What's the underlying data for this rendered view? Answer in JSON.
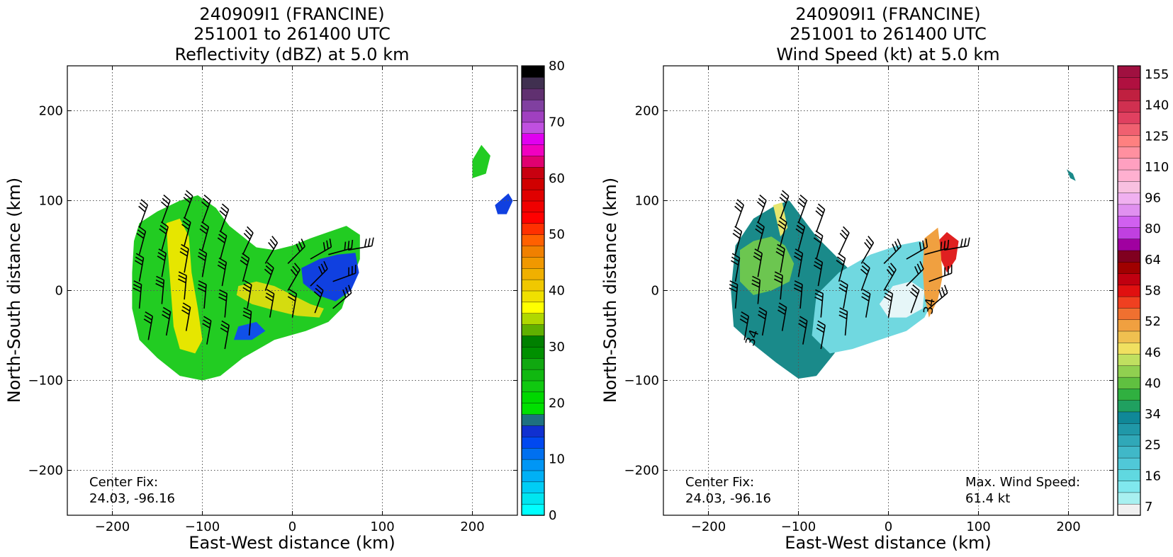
{
  "chart_data": [
    {
      "type": "heatmap",
      "title_lines": [
        "240909I1 (FRANCINE)",
        "251001 to 261400 UTC",
        "Reflectivity (dBZ) at 5.0 km"
      ],
      "xlabel": "East-West distance (km)",
      "ylabel": "North-South distance (km)",
      "xlim": [
        -250,
        250
      ],
      "ylim": [
        -250,
        250
      ],
      "xticks": [
        -200,
        -100,
        0,
        100,
        200
      ],
      "yticks": [
        -200,
        -100,
        0,
        100,
        200
      ],
      "grid": true,
      "annotation": [
        "Center Fix:",
        "24.03, -96.16"
      ],
      "colorbar": {
        "min": 0,
        "max": 80,
        "ticks": [
          0,
          10,
          20,
          30,
          40,
          50,
          60,
          70,
          80
        ],
        "colors": [
          "#00ffff",
          "#00e5f0",
          "#00cdf5",
          "#00b0f5",
          "#0096f5",
          "#0070f0",
          "#0048f0",
          "#1030d0",
          "#1e7080",
          "#00e000",
          "#00d800",
          "#10c810",
          "#10b810",
          "#10a810",
          "#009000",
          "#008000",
          "#60b000",
          "#b0d800",
          "#ffff00",
          "#f0e000",
          "#f0c800",
          "#f0b000",
          "#f09800",
          "#f08000",
          "#ff6000",
          "#ff3000",
          "#ff0000",
          "#f00000",
          "#e00000",
          "#d00000",
          "#c80010",
          "#e00070",
          "#f000c0",
          "#e000f0",
          "#c050e0",
          "#a040c0",
          "#8040a0",
          "#603070",
          "#403050",
          "#000000"
        ]
      },
      "echo_regions": [
        {
          "level": "green",
          "color": "#22cc22",
          "points": [
            [
              -170,
              75
            ],
            [
              -150,
              88
            ],
            [
              -125,
              100
            ],
            [
              -105,
              106
            ],
            [
              -85,
              92
            ],
            [
              -70,
              72
            ],
            [
              -55,
              60
            ],
            [
              -40,
              48
            ],
            [
              -20,
              45
            ],
            [
              0,
              50
            ],
            [
              20,
              58
            ],
            [
              40,
              65
            ],
            [
              60,
              72
            ],
            [
              75,
              62
            ],
            [
              75,
              35
            ],
            [
              65,
              10
            ],
            [
              55,
              -20
            ],
            [
              40,
              -35
            ],
            [
              15,
              -45
            ],
            [
              -20,
              -55
            ],
            [
              -55,
              -75
            ],
            [
              -80,
              -95
            ],
            [
              -100,
              -100
            ],
            [
              -125,
              -95
            ],
            [
              -150,
              -75
            ],
            [
              -170,
              -55
            ],
            [
              -178,
              -20
            ],
            [
              -178,
              20
            ],
            [
              -176,
              55
            ]
          ]
        },
        {
          "level": "yellow-band",
          "color": "#e6e600",
          "points": [
            [
              -140,
              75
            ],
            [
              -125,
              80
            ],
            [
              -115,
              60
            ],
            [
              -112,
              20
            ],
            [
              -105,
              -20
            ],
            [
              -100,
              -55
            ],
            [
              -108,
              -70
            ],
            [
              -125,
              -65
            ],
            [
              -132,
              -40
            ],
            [
              -135,
              0
            ],
            [
              -138,
              40
            ]
          ]
        },
        {
          "level": "yellow-east",
          "color": "#d4dc10",
          "points": [
            [
              -60,
              5
            ],
            [
              -40,
              10
            ],
            [
              -20,
              5
            ],
            [
              0,
              -5
            ],
            [
              20,
              -15
            ],
            [
              35,
              -20
            ],
            [
              30,
              -30
            ],
            [
              5,
              -28
            ],
            [
              -20,
              -22
            ],
            [
              -45,
              -15
            ],
            [
              -62,
              -5
            ]
          ]
        },
        {
          "level": "blue",
          "color": "#1040e0",
          "points": [
            [
              10,
              25
            ],
            [
              30,
              35
            ],
            [
              50,
              40
            ],
            [
              70,
              42
            ],
            [
              74,
              20
            ],
            [
              65,
              0
            ],
            [
              48,
              -12
            ],
            [
              28,
              -5
            ],
            [
              12,
              8
            ]
          ]
        },
        {
          "level": "blue-west",
          "color": "#1050e8",
          "points": [
            [
              -60,
              -40
            ],
            [
              -40,
              -35
            ],
            [
              -30,
              -45
            ],
            [
              -45,
              -55
            ],
            [
              -65,
              -55
            ]
          ]
        },
        {
          "level": "green-far",
          "color": "#22cc22",
          "points": [
            [
              200,
              125
            ],
            [
              215,
              130
            ],
            [
              220,
              150
            ],
            [
              210,
              162
            ],
            [
              200,
              145
            ]
          ]
        },
        {
          "level": "blue-far",
          "color": "#1040e0",
          "points": [
            [
              225,
              95
            ],
            [
              240,
              108
            ],
            [
              245,
              100
            ],
            [
              238,
              85
            ],
            [
              228,
              85
            ]
          ]
        }
      ],
      "wind_barbs_present": true
    },
    {
      "type": "heatmap",
      "title_lines": [
        "240909I1 (FRANCINE)",
        "251001 to 261400 UTC",
        "Wind Speed (kt) at 5.0 km"
      ],
      "xlabel": "East-West distance (km)",
      "ylabel": "North-South distance (km)",
      "xlim": [
        -250,
        250
      ],
      "ylim": [
        -250,
        250
      ],
      "xticks": [
        -200,
        -100,
        0,
        100,
        200
      ],
      "yticks": [
        -200,
        -100,
        0,
        100,
        200
      ],
      "grid": true,
      "annotation": [
        "Center Fix:",
        "24.03, -96.16"
      ],
      "max_wind_annotation": [
        "Max. Wind Speed:",
        "61.4 kt"
      ],
      "max_wind_kt": 61.4,
      "contour_labels": [
        "34",
        "34"
      ],
      "colorbar": {
        "ticks": [
          7,
          16,
          25,
          34,
          40,
          46,
          52,
          58,
          64,
          80,
          96,
          110,
          125,
          140,
          155
        ],
        "colors": [
          "#f0f0f0",
          "#a8f0f0",
          "#80e8ee",
          "#60d8e0",
          "#50c8d8",
          "#40b8c8",
          "#30a8b8",
          "#2098a8",
          "#108898",
          "#20a060",
          "#30b040",
          "#60c040",
          "#90d050",
          "#c0e060",
          "#f0e060",
          "#f0c050",
          "#f0a040",
          "#f07030",
          "#f04020",
          "#e01010",
          "#c00010",
          "#a00000",
          "#800020",
          "#a000a0",
          "#c040e0",
          "#d060f0",
          "#e090f0",
          "#f0b0f0",
          "#f8c0e0",
          "#ffb0d0",
          "#ffa0c0",
          "#ff90a0",
          "#ff8080",
          "#f06070",
          "#e04060",
          "#d03050",
          "#c02040",
          "#b01040",
          "#a01040"
        ]
      },
      "wind_regions": [
        {
          "level": "teal-west",
          "color": "#1a8a8a",
          "points": [
            [
              -170,
              50
            ],
            [
              -150,
              80
            ],
            [
              -125,
              95
            ],
            [
              -110,
              100
            ],
            [
              -95,
              80
            ],
            [
              -80,
              60
            ],
            [
              -60,
              40
            ],
            [
              -45,
              25
            ],
            [
              -40,
              -5
            ],
            [
              -45,
              -40
            ],
            [
              -60,
              -70
            ],
            [
              -80,
              -95
            ],
            [
              -100,
              -98
            ],
            [
              -125,
              -80
            ],
            [
              -150,
              -60
            ],
            [
              -172,
              -40
            ],
            [
              -175,
              0
            ]
          ]
        },
        {
          "level": "green-west",
          "color": "#6cc650",
          "points": [
            [
              -165,
              45
            ],
            [
              -150,
              55
            ],
            [
              -130,
              60
            ],
            [
              -115,
              50
            ],
            [
              -105,
              30
            ],
            [
              -110,
              10
            ],
            [
              -130,
              0
            ],
            [
              -150,
              -5
            ],
            [
              -165,
              10
            ]
          ]
        },
        {
          "level": "yellow-strip",
          "color": "#e6e66e",
          "points": [
            [
              -128,
              95
            ],
            [
              -118,
              98
            ],
            [
              -112,
              70
            ],
            [
              -120,
              60
            ]
          ]
        },
        {
          "level": "cyan-east",
          "color": "#70d8e0",
          "points": [
            [
              -80,
              -5
            ],
            [
              -55,
              20
            ],
            [
              -20,
              40
            ],
            [
              10,
              50
            ],
            [
              35,
              55
            ],
            [
              50,
              45
            ],
            [
              55,
              20
            ],
            [
              50,
              -10
            ],
            [
              40,
              -30
            ],
            [
              20,
              -45
            ],
            [
              -10,
              -55
            ],
            [
              -40,
              -65
            ],
            [
              -65,
              -70
            ],
            [
              -85,
              -50
            ]
          ]
        },
        {
          "level": "white-core",
          "color": "#e6f6f8",
          "points": [
            [
              -10,
              -15
            ],
            [
              5,
              5
            ],
            [
              25,
              10
            ],
            [
              40,
              0
            ],
            [
              38,
              -20
            ],
            [
              20,
              -30
            ],
            [
              0,
              -30
            ]
          ]
        },
        {
          "level": "red-east",
          "color": "#e02020",
          "points": [
            [
              55,
              55
            ],
            [
              65,
              65
            ],
            [
              78,
              55
            ],
            [
              75,
              35
            ],
            [
              65,
              20
            ],
            [
              58,
              35
            ]
          ]
        },
        {
          "level": "orange-east",
          "color": "#f0a040",
          "points": [
            [
              40,
              58
            ],
            [
              55,
              70
            ],
            [
              58,
              45
            ],
            [
              60,
              15
            ],
            [
              55,
              -10
            ],
            [
              45,
              -30
            ],
            [
              40,
              -5
            ],
            [
              38,
              25
            ]
          ]
        },
        {
          "level": "teal-far",
          "color": "#1a8a8a",
          "points": [
            [
              198,
              135
            ],
            [
              205,
              130
            ],
            [
              208,
              122
            ],
            [
              202,
              125
            ]
          ]
        }
      ],
      "wind_barbs_present": true
    }
  ]
}
